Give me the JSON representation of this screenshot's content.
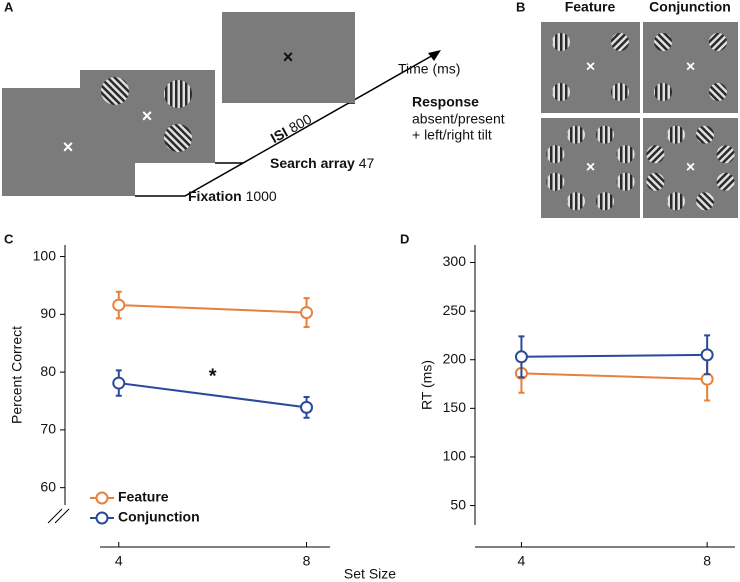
{
  "panel_labels": [
    "A",
    "B",
    "C",
    "D"
  ],
  "diagram": {
    "time_label": "Time (ms)",
    "response": "Response",
    "response_detail": [
      "absent/present",
      "+ left/right tilt"
    ],
    "stages": [
      {
        "name": "Fixation",
        "duration": "1000"
      },
      {
        "name": "Search array",
        "duration": "47"
      },
      {
        "name": "ISI",
        "duration": "800"
      }
    ],
    "conditions": [
      "Feature",
      "Conjunction"
    ]
  },
  "chart_data": [
    {
      "type": "line",
      "ylabel": "Percent Correct",
      "xlabel": "Set Size",
      "x": [
        4,
        8
      ],
      "xlim": [
        3.6,
        8.5
      ],
      "xticks": [
        4,
        8
      ],
      "ylim": [
        57,
        102
      ],
      "yticks": [
        60,
        70,
        80,
        90,
        100
      ],
      "legend": "lower left",
      "annotation": "*",
      "series": [
        {
          "name": "Feature",
          "color": "#e8803a",
          "values": [
            91.6,
            90.3
          ],
          "errors": [
            2.3,
            2.5
          ]
        },
        {
          "name": "Conjunction",
          "color": "#2a4a9a",
          "values": [
            78.1,
            73.9
          ],
          "errors": [
            2.2,
            1.8
          ]
        }
      ]
    },
    {
      "type": "line",
      "ylabel": "RT (ms)",
      "x": [
        4,
        8
      ],
      "xlim": [
        3,
        8.6
      ],
      "xticks": [
        4,
        8
      ],
      "ylim": [
        30,
        318
      ],
      "yticks": [
        50,
        100,
        150,
        200,
        250,
        300
      ],
      "series": [
        {
          "color": "#e8803a",
          "values": [
            186,
            180
          ],
          "errors": [
            20,
            22
          ]
        },
        {
          "color": "#2a4a9a",
          "values": [
            203,
            205
          ],
          "errors": [
            21,
            20
          ]
        }
      ]
    }
  ]
}
